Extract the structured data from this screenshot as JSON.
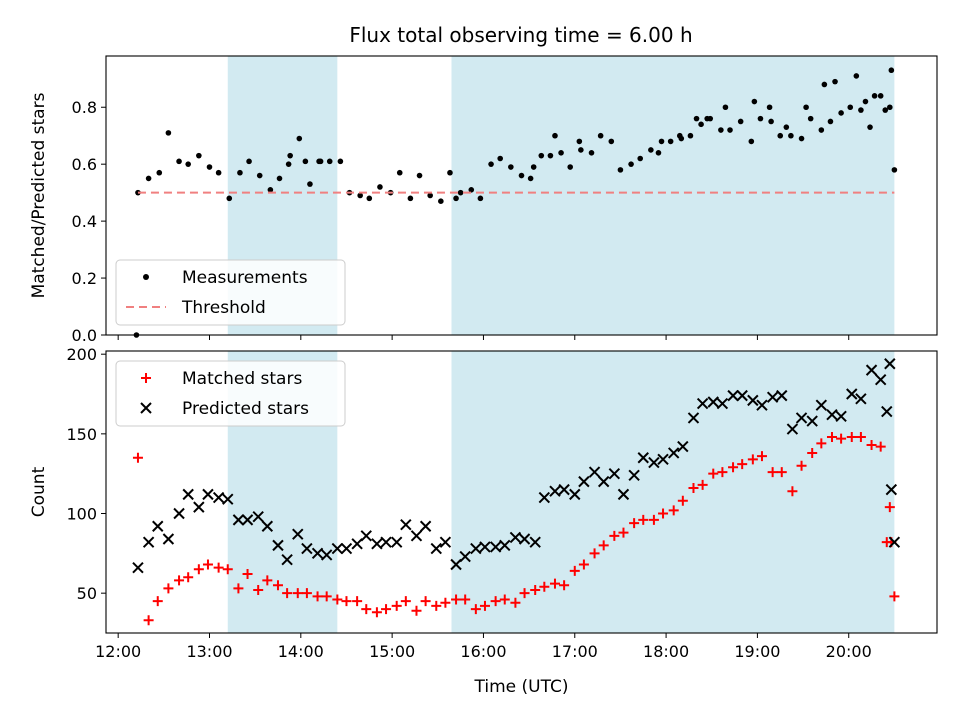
{
  "figure": {
    "title": "Flux total observing time = 6.00 h",
    "colors": {
      "band": "#add8e6",
      "measurement": "#000000",
      "threshold": "#f08080",
      "matched": "#ff0000",
      "predicted": "#000000"
    }
  },
  "chart_data": [
    {
      "type": "scatter",
      "panel": "top",
      "title": "Flux total observing time = 6.00 h",
      "xlabel": "",
      "ylabel": "Matched/Predicted stars",
      "xticks": [
        "12:00",
        "13:00",
        "14:00",
        "15:00",
        "16:00",
        "17:00",
        "18:00",
        "19:00",
        "20:00"
      ],
      "yticks": [
        "0.0",
        "0.2",
        "0.4",
        "0.6",
        "0.8"
      ],
      "xlim": [
        "11:52",
        "20:58"
      ],
      "ylim": [
        0,
        0.98
      ],
      "legend_position": "lower-left",
      "shaded_intervals": [
        [
          "13:12",
          "14:24"
        ],
        [
          "15:39",
          "20:30"
        ]
      ],
      "series": [
        {
          "name": "Measurements",
          "marker": "dot",
          "x": [
            "12:13",
            "12:20",
            "12:27",
            "12:33",
            "12:40",
            "12:46",
            "12:53",
            "13:00",
            "13:06",
            "13:13",
            "13:20",
            "13:26",
            "13:33",
            "13:40",
            "13:46",
            "13:53",
            "13:59",
            "14:06",
            "14:12",
            "14:19",
            "14:26",
            "14:32",
            "14:39",
            "14:45",
            "14:52",
            "14:59",
            "15:05",
            "15:12",
            "15:18",
            "15:25",
            "15:32",
            "15:38",
            "15:45",
            "15:52",
            "15:58",
            "16:05",
            "16:11",
            "16:18",
            "16:25",
            "16:31",
            "16:38",
            "16:44",
            "16:51",
            "16:57",
            "17:04",
            "17:11",
            "17:17",
            "17:24",
            "17:30",
            "17:37",
            "17:43",
            "17:50",
            "17:57",
            "18:03",
            "18:10",
            "18:16",
            "18:23",
            "18:29",
            "18:36",
            "18:42",
            "18:49",
            "18:56",
            "19:02",
            "19:09",
            "19:15",
            "19:22",
            "19:29",
            "19:35",
            "19:42",
            "19:48",
            "19:55",
            "20:01",
            "20:08",
            "20:14",
            "20:21",
            "20:28"
          ],
          "y": [
            0.5,
            0.55,
            0.57,
            0.71,
            0.61,
            0.6,
            0.63,
            0.59,
            0.57,
            0.48,
            0.57,
            0.61,
            0.56,
            0.51,
            0.55,
            0.63,
            0.69,
            0.53,
            0.61,
            0.61,
            0.61,
            0.5,
            0.49,
            0.48,
            0.52,
            0.5,
            0.57,
            0.48,
            0.56,
            0.49,
            0.47,
            0.57,
            0.5,
            0.51,
            0.48,
            0.6,
            0.62,
            0.59,
            0.56,
            0.55,
            0.63,
            0.63,
            0.64,
            0.59,
            0.65,
            0.64,
            0.7,
            0.68,
            0.58,
            0.6,
            0.62,
            0.65,
            0.68,
            0.68,
            0.69,
            0.7,
            0.74,
            0.76,
            0.72,
            0.72,
            0.75,
            0.68,
            0.76,
            0.75,
            0.7,
            0.7,
            0.69,
            0.76,
            0.72,
            0.75,
            0.78,
            0.8,
            0.79,
            0.73,
            0.84,
            0.93
          ],
          "x_extra": [
            "12:12",
            "13:52",
            "14:03",
            "14:13",
            "15:42",
            "16:33",
            "16:47",
            "17:03",
            "17:55",
            "18:09",
            "18:20",
            "18:27",
            "18:39",
            "18:58",
            "19:08",
            "19:19",
            "19:32",
            "19:44",
            "19:51",
            "20:05",
            "20:11",
            "20:17",
            "20:24",
            "20:27",
            "20:30"
          ],
          "y_extra": [
            0.0,
            0.6,
            0.61,
            0.61,
            0.48,
            0.59,
            0.7,
            0.68,
            0.64,
            0.7,
            0.76,
            0.76,
            0.8,
            0.82,
            0.8,
            0.73,
            0.8,
            0.88,
            0.89,
            0.91,
            0.82,
            0.84,
            0.79,
            0.8,
            0.58
          ]
        },
        {
          "name": "Threshold",
          "style": "dashed",
          "x": [
            "12:13",
            "20:30"
          ],
          "y": [
            0.5,
            0.5
          ]
        }
      ]
    },
    {
      "type": "scatter",
      "panel": "bottom",
      "title": "",
      "xlabel": "Time (UTC)",
      "ylabel": "Count",
      "xticks": [
        "12:00",
        "13:00",
        "14:00",
        "15:00",
        "16:00",
        "17:00",
        "18:00",
        "19:00",
        "20:00"
      ],
      "yticks": [
        "50",
        "100",
        "150",
        "200"
      ],
      "xlim": [
        "11:52",
        "20:58"
      ],
      "ylim": [
        25,
        202
      ],
      "legend_position": "upper-left",
      "shaded_intervals": [
        [
          "13:12",
          "14:24"
        ],
        [
          "15:39",
          "20:30"
        ]
      ],
      "series": [
        {
          "name": "Matched stars",
          "marker": "plus",
          "x": [
            "12:13",
            "12:20",
            "12:26",
            "12:33",
            "12:40",
            "12:46",
            "12:53",
            "12:59",
            "13:06",
            "13:12",
            "13:19",
            "13:25",
            "13:32",
            "13:38",
            "13:45",
            "13:51",
            "13:58",
            "14:04",
            "14:11",
            "14:17",
            "14:24",
            "14:30",
            "14:37",
            "14:43",
            "14:50",
            "14:56",
            "15:03",
            "15:09",
            "15:16",
            "15:22",
            "15:29",
            "15:35",
            "15:42",
            "15:48",
            "15:55",
            "16:01",
            "16:08",
            "16:14",
            "16:21",
            "16:27",
            "16:34",
            "16:40",
            "16:47",
            "16:53",
            "17:00",
            "17:06",
            "17:13",
            "17:19",
            "17:26",
            "17:32",
            "17:39",
            "17:45",
            "17:52",
            "17:58",
            "18:05",
            "18:11",
            "18:18",
            "18:24",
            "18:31",
            "18:37",
            "18:44",
            "18:50",
            "18:57",
            "19:03",
            "19:10",
            "19:16",
            "19:23",
            "19:29",
            "19:36",
            "19:42",
            "19:49",
            "19:55",
            "20:02",
            "20:08",
            "20:15",
            "20:21",
            "20:27"
          ],
          "y": [
            135,
            33,
            45,
            53,
            58,
            60,
            65,
            68,
            66,
            65,
            53,
            62,
            52,
            58,
            55,
            50,
            50,
            50,
            48,
            48,
            46,
            45,
            45,
            40,
            38,
            40,
            42,
            45,
            39,
            45,
            42,
            44,
            46,
            46,
            40,
            42,
            45,
            46,
            44,
            50,
            52,
            54,
            56,
            55,
            64,
            68,
            75,
            80,
            86,
            88,
            94,
            96,
            96,
            100,
            102,
            108,
            116,
            118,
            125,
            126,
            129,
            131,
            134,
            136,
            126,
            126,
            114,
            130,
            138,
            144,
            148,
            147,
            148,
            148,
            143,
            142,
            104
          ],
          "x_extra": [
            "20:25",
            "20:28",
            "20:30"
          ],
          "y_extra": [
            82,
            82,
            48
          ]
        },
        {
          "name": "Predicted stars",
          "marker": "x",
          "x": [
            "12:13",
            "12:20",
            "12:26",
            "12:33",
            "12:40",
            "12:46",
            "12:53",
            "12:59",
            "13:06",
            "13:12",
            "13:19",
            "13:25",
            "13:32",
            "13:38",
            "13:45",
            "13:51",
            "13:58",
            "14:04",
            "14:11",
            "14:17",
            "14:24",
            "14:30",
            "14:37",
            "14:43",
            "14:50",
            "14:56",
            "15:03",
            "15:09",
            "15:16",
            "15:22",
            "15:29",
            "15:35",
            "15:42",
            "15:48",
            "15:55",
            "16:01",
            "16:08",
            "16:14",
            "16:21",
            "16:27",
            "16:34",
            "16:40",
            "16:47",
            "16:53",
            "17:00",
            "17:06",
            "17:13",
            "17:19",
            "17:26",
            "17:32",
            "17:39",
            "17:45",
            "17:52",
            "17:58",
            "18:05",
            "18:11",
            "18:18",
            "18:24",
            "18:31",
            "18:37",
            "18:44",
            "18:50",
            "18:57",
            "19:03",
            "19:10",
            "19:16",
            "19:23",
            "19:29",
            "19:36",
            "19:42",
            "19:49",
            "19:55",
            "20:02",
            "20:08",
            "20:15",
            "20:21",
            "20:27"
          ],
          "y": [
            66,
            82,
            92,
            84,
            100,
            112,
            104,
            112,
            110,
            109,
            96,
            96,
            98,
            92,
            80,
            71,
            87,
            78,
            75,
            74,
            78,
            78,
            81,
            86,
            81,
            82,
            82,
            93,
            86,
            92,
            78,
            82,
            68,
            73,
            78,
            79,
            79,
            80,
            85,
            84,
            82,
            110,
            114,
            115,
            112,
            120,
            126,
            120,
            125,
            112,
            124,
            135,
            132,
            134,
            138,
            142,
            160,
            169,
            170,
            169,
            174,
            174,
            171,
            168,
            173,
            174,
            153,
            160,
            158,
            168,
            162,
            161,
            175,
            172,
            190,
            184,
            194
          ],
          "x_extra": [
            "20:25",
            "20:28",
            "20:30"
          ],
          "y_extra": [
            164,
            115,
            82
          ]
        }
      ]
    }
  ]
}
